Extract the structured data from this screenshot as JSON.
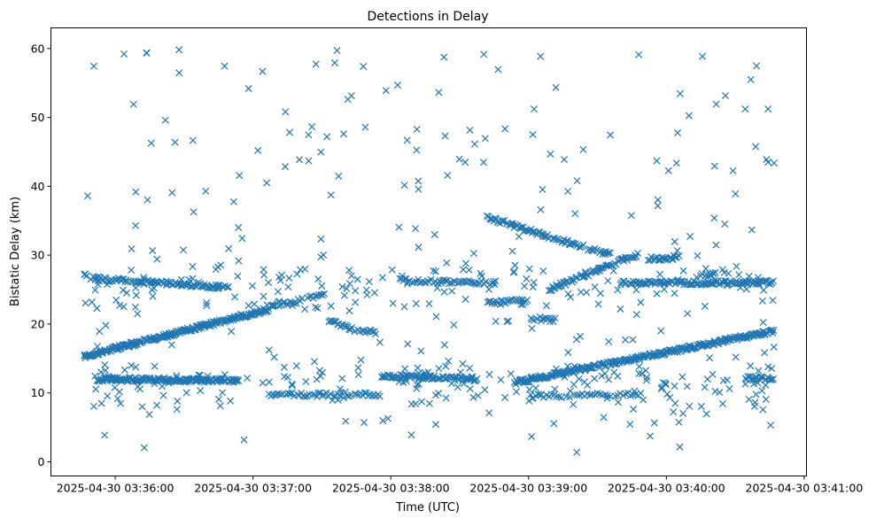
{
  "chart_data": {
    "type": "scatter",
    "title": "Detections in Delay",
    "xlabel": "Time (UTC)",
    "ylabel": "Bistatic Delay (km)",
    "x_units": "seconds after 2025-04-30 03:35:00",
    "xlim": [
      32,
      361
    ],
    "ylim": [
      -2.06,
      63
    ],
    "grid": false,
    "marker": "x",
    "color": "#1f77b4",
    "xticks": [
      {
        "value": 60,
        "label": "2025-04-30 03:36:00"
      },
      {
        "value": 120,
        "label": "2025-04-30 03:37:00"
      },
      {
        "value": 180,
        "label": "2025-04-30 03:38:00"
      },
      {
        "value": 240,
        "label": "2025-04-30 03:39:00"
      },
      {
        "value": 300,
        "label": "2025-04-30 03:40:00"
      },
      {
        "value": 360,
        "label": "2025-04-30 03:41:00"
      }
    ],
    "yticks": [
      {
        "value": 0,
        "label": "0"
      },
      {
        "value": 10,
        "label": "10"
      },
      {
        "value": 20,
        "label": "20"
      },
      {
        "value": 30,
        "label": "30"
      },
      {
        "value": 40,
        "label": "40"
      },
      {
        "value": 50,
        "label": "50"
      },
      {
        "value": 60,
        "label": "60"
      }
    ],
    "tracks": [
      {
        "points": [
          [
            46.5,
            15.3
          ],
          [
            127.5,
            22.2
          ]
        ],
        "density": 3.2
      },
      {
        "points": [
          [
            128,
            22.5
          ],
          [
            152,
            24.3
          ]
        ],
        "density": 1.2
      },
      {
        "points": [
          [
            46.5,
            27
          ],
          [
            52,
            26.6
          ],
          [
            110,
            25.3
          ]
        ],
        "density": 1.8
      },
      {
        "points": [
          [
            52,
            12
          ],
          [
            114,
            11.8
          ]
        ],
        "density": 3
      },
      {
        "points": [
          [
            127,
            9.7
          ],
          [
            176,
            9.8
          ]
        ],
        "density": 1.2
      },
      {
        "points": [
          [
            153,
            20.5
          ],
          [
            165,
            19
          ],
          [
            174,
            18.8
          ]
        ],
        "density": 1.6
      },
      {
        "points": [
          [
            176,
            12.5
          ],
          [
            218,
            12
          ]
        ],
        "density": 2.2
      },
      {
        "points": [
          [
            184,
            26.3
          ],
          [
            226,
            26
          ]
        ],
        "density": 1.5
      },
      {
        "points": [
          [
            222,
            35.5
          ],
          [
            241,
            33.5
          ],
          [
            276,
            30
          ]
        ],
        "density": 1.8
      },
      {
        "points": [
          [
            234,
            11.5
          ],
          [
            347,
            19
          ]
        ],
        "density": 2.8
      },
      {
        "points": [
          [
            249,
            25
          ],
          [
            288,
            30.2
          ]
        ],
        "density": 2
      },
      {
        "points": [
          [
            280,
            26
          ],
          [
            347,
            26
          ]
        ],
        "density": 2
      },
      {
        "points": [
          [
            222,
            23
          ],
          [
            240,
            23.5
          ]
        ],
        "density": 1.5
      },
      {
        "points": [
          [
            241,
            20.8
          ],
          [
            252,
            20.6
          ]
        ],
        "density": 1.5
      },
      {
        "points": [
          [
            241,
            9.5
          ],
          [
            290,
            9.8
          ]
        ],
        "density": 0.9
      },
      {
        "points": [
          [
            292,
            29.5
          ],
          [
            306,
            29.6
          ]
        ],
        "density": 2
      },
      {
        "points": [
          [
            315,
            27.2
          ],
          [
            322,
            27.2
          ]
        ],
        "density": 1.5
      },
      {
        "points": [
          [
            334,
            12.2
          ],
          [
            347,
            12
          ]
        ],
        "density": 2
      }
    ],
    "clutter": {
      "count": 520,
      "x_range": [
        46.5,
        347.5
      ],
      "y_range": [
        1,
        60
      ],
      "seed": 7
    }
  }
}
